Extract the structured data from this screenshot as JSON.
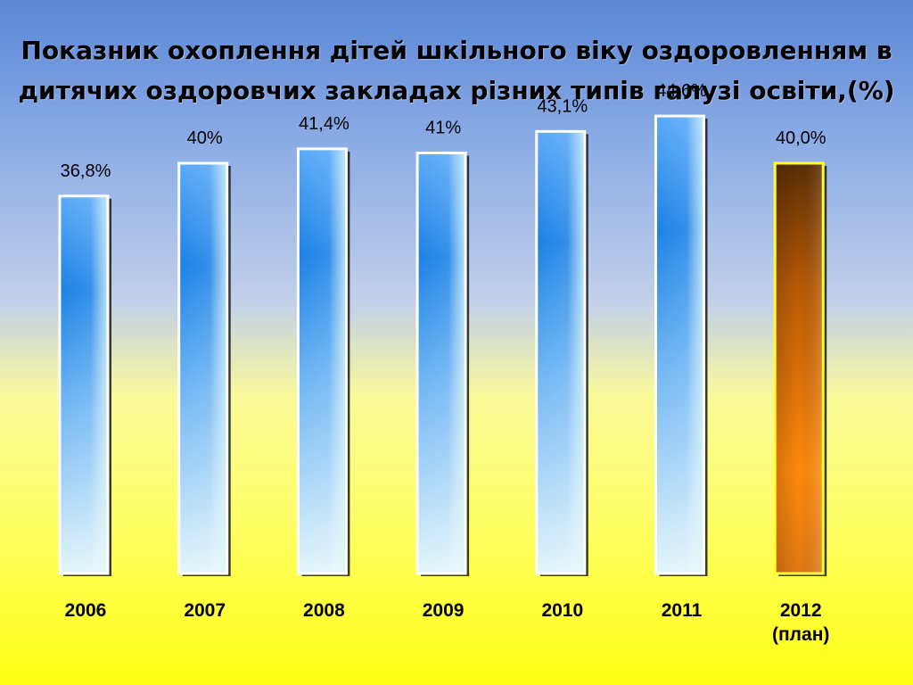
{
  "title": "Показник охоплення дітей шкільного віку оздоровленням в дитячих оздоровчих закладах різних типів галузі освіти,(%)",
  "title_lines": [
    "Показник охоплення дітей шкільного віку оздоровленням в",
    "дитячих оздоровчих закладах різних типів галузі освіти,(%)"
  ],
  "colors": {
    "bar_actual": "#2f8ef0",
    "bar_plan": "#d96f08",
    "bar_plan_border": "#ffff33"
  },
  "chart_data": {
    "type": "bar",
    "title": "Показник охоплення дітей шкільного віку оздоровленням в дитячих оздоровчих закладах різних типів галузі освіти,(%)",
    "categories": [
      [
        "2006"
      ],
      [
        "2007"
      ],
      [
        "2008"
      ],
      [
        "2009"
      ],
      [
        "2010"
      ],
      [
        "2011"
      ],
      [
        "2012",
        "(план)"
      ]
    ],
    "values": [
      36.8,
      40,
      41.4,
      41,
      43.1,
      44.6,
      40.0
    ],
    "value_labels": [
      "36,8%",
      "40%",
      "41,4%",
      "41%",
      "43,1%",
      "44,6%",
      "40,0%"
    ],
    "highlight_index": 6,
    "ylim": [
      0,
      48
    ],
    "grid": false,
    "legend": "none"
  }
}
